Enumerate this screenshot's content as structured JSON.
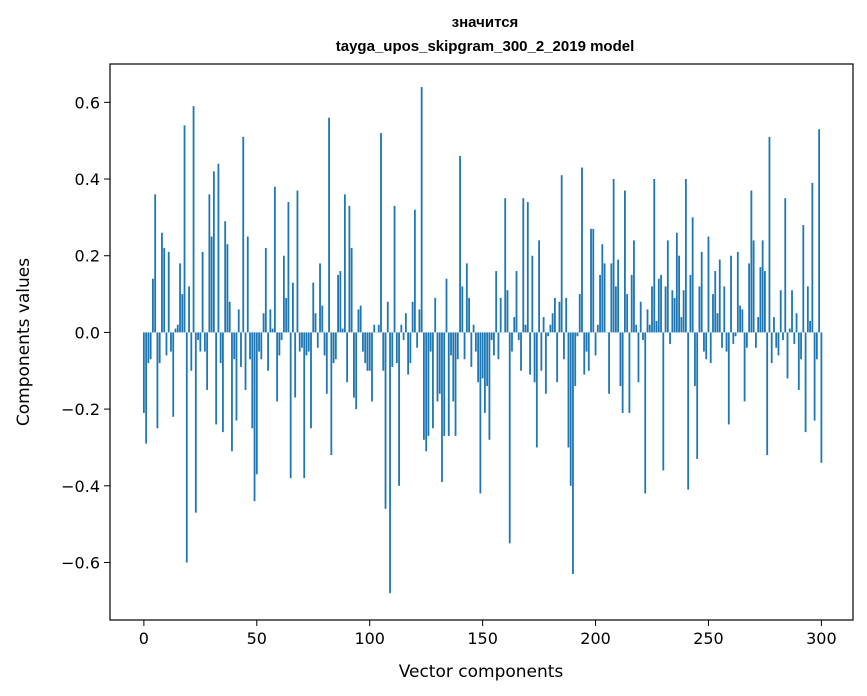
{
  "chart_data": {
    "type": "bar",
    "title": "значится",
    "subtitle": "tayga_upos_skipgram_300_2_2019 model",
    "xlabel": "Vector components",
    "ylabel": "Components values",
    "xlim": [
      -15,
      314
    ],
    "ylim": [
      -0.75,
      0.7
    ],
    "x_ticks": [
      0,
      50,
      100,
      150,
      200,
      250,
      300
    ],
    "x_tick_labels": [
      "0",
      "50",
      "100",
      "150",
      "200",
      "250",
      "300"
    ],
    "y_ticks": [
      -0.6,
      -0.4,
      -0.2,
      0.0,
      0.2,
      0.4,
      0.6
    ],
    "y_tick_labels": [
      "−0.6",
      "−0.4",
      "−0.2",
      "0.0",
      "0.2",
      "0.4",
      "0.6"
    ],
    "grid": false,
    "color": "#1f77b4",
    "x_start": 0,
    "values": [
      -0.21,
      -0.29,
      -0.08,
      -0.07,
      0.14,
      0.36,
      -0.25,
      -0.08,
      0.26,
      0.22,
      -0.06,
      0.21,
      -0.05,
      -0.22,
      0.01,
      0.02,
      0.18,
      0.1,
      0.54,
      -0.6,
      0.12,
      -0.1,
      0.59,
      -0.47,
      -0.02,
      -0.05,
      0.21,
      -0.05,
      -0.15,
      0.36,
      0.25,
      0.42,
      -0.24,
      0.44,
      -0.08,
      -0.26,
      0.29,
      0.23,
      0.08,
      -0.31,
      -0.07,
      -0.23,
      0.06,
      -0.09,
      0.51,
      -0.15,
      0.25,
      -0.07,
      -0.25,
      -0.44,
      -0.37,
      -0.05,
      -0.07,
      0.05,
      0.22,
      -0.1,
      0.06,
      0.01,
      0.38,
      -0.18,
      -0.06,
      -0.02,
      0.2,
      0.09,
      0.34,
      -0.38,
      0.13,
      -0.17,
      0.37,
      -0.05,
      -0.04,
      -0.38,
      -0.06,
      -0.05,
      -0.25,
      0.13,
      0.05,
      -0.04,
      0.18,
      0.07,
      -0.06,
      -0.16,
      0.56,
      -0.32,
      -0.08,
      -0.07,
      0.15,
      0.16,
      0.01,
      0.36,
      -0.13,
      0.33,
      0.22,
      -0.17,
      -0.2,
      0.06,
      0.07,
      -0.05,
      -0.08,
      -0.1,
      -0.1,
      -0.18,
      0.02,
      0.0,
      0.02,
      0.52,
      -0.1,
      -0.46,
      0.08,
      -0.68,
      -0.09,
      0.33,
      -0.08,
      -0.4,
      0.02,
      -0.02,
      0.05,
      -0.11,
      -0.08,
      0.08,
      0.32,
      -0.04,
      0.06,
      0.64,
      -0.28,
      -0.31,
      -0.27,
      -0.05,
      -0.25,
      0.09,
      -0.18,
      -0.16,
      -0.39,
      -0.27,
      0.14,
      -0.27,
      -0.06,
      -0.18,
      -0.27,
      -0.07,
      0.46,
      0.12,
      -0.07,
      0.18,
      0.09,
      -0.09,
      0.02,
      -0.05,
      -0.13,
      -0.42,
      -0.12,
      -0.21,
      -0.14,
      -0.28,
      -0.02,
      -0.06,
      0.16,
      -0.07,
      0.09,
      0.0,
      0.35,
      0.11,
      -0.55,
      -0.05,
      0.04,
      0.16,
      -0.02,
      -0.1,
      0.35,
      0.02,
      0.34,
      -0.11,
      0.2,
      -0.13,
      -0.3,
      0.24,
      -0.1,
      0.04,
      -0.16,
      -0.01,
      0.02,
      0.05,
      0.09,
      -0.13,
      0.08,
      0.41,
      -0.07,
      0.09,
      -0.3,
      -0.4,
      -0.63,
      -0.14,
      -0.01,
      0.1,
      0.43,
      -0.11,
      -0.05,
      -0.1,
      0.27,
      0.27,
      -0.06,
      0.02,
      0.15,
      0.23,
      0.18,
      0.0,
      -0.16,
      0.18,
      0.4,
      0.12,
      0.19,
      -0.14,
      -0.21,
      0.37,
      0.1,
      -0.21,
      0.15,
      0.24,
      0.02,
      -0.13,
      0.08,
      -0.02,
      -0.42,
      0.06,
      0.02,
      0.12,
      0.4,
      0.03,
      0.14,
      0.15,
      -0.36,
      0.12,
      0.24,
      -0.03,
      0.11,
      0.09,
      0.26,
      0.2,
      0.04,
      0.11,
      0.4,
      -0.41,
      0.15,
      0.3,
      -0.14,
      -0.33,
      0.12,
      0.21,
      -0.05,
      -0.07,
      0.25,
      -0.08,
      0.1,
      0.16,
      0.05,
      0.19,
      -0.04,
      0.12,
      -0.05,
      -0.24,
      0.2,
      -0.03,
      -0.01,
      0.21,
      0.07,
      0.06,
      -0.18,
      -0.04,
      0.18,
      0.37,
      0.24,
      -0.04,
      0.04,
      0.17,
      0.24,
      0.16,
      -0.32,
      0.51,
      -0.08,
      0.04,
      -0.04,
      -0.06,
      0.11,
      -0.02,
      0.35,
      -0.12,
      0.01,
      0.11,
      -0.03,
      0.05,
      -0.15,
      -0.07,
      0.28,
      -0.26,
      0.12,
      0.03,
      0.39,
      -0.23,
      -0.07,
      0.53,
      -0.34
    ]
  }
}
